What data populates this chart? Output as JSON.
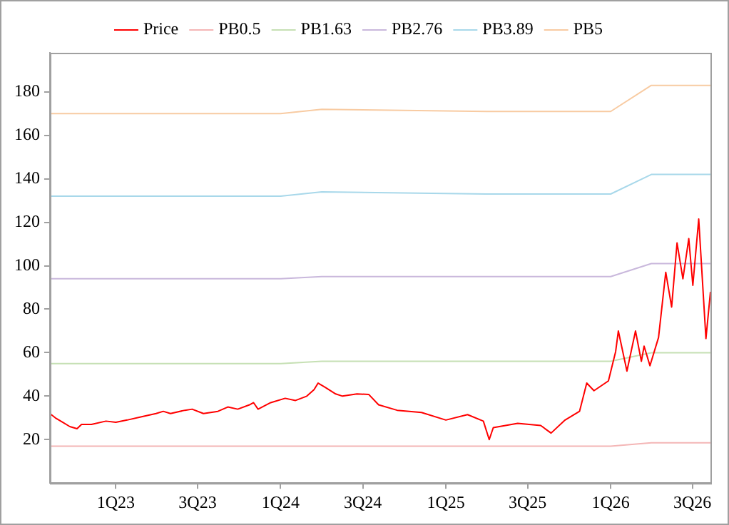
{
  "chart_data": {
    "type": "line",
    "legend": "top",
    "grid": false,
    "marker": "none",
    "line_style": "solid",
    "xlim": [
      "2022-08-08",
      "2026-08-10"
    ],
    "xticks": [
      {
        "value": "2023-01-01",
        "label": "1Q23"
      },
      {
        "value": "2023-07-01",
        "label": "3Q23"
      },
      {
        "value": "2024-01-01",
        "label": "1Q24"
      },
      {
        "value": "2024-07-01",
        "label": "3Q24"
      },
      {
        "value": "2025-01-01",
        "label": "1Q25"
      },
      {
        "value": "2025-07-01",
        "label": "3Q25"
      },
      {
        "value": "2026-01-01",
        "label": "1Q26"
      },
      {
        "value": "2026-07-01",
        "label": "3Q26"
      }
    ],
    "ylim": [
      0,
      198
    ],
    "yticks": [
      20,
      40,
      60,
      80,
      100,
      120,
      140,
      160,
      180
    ],
    "series": [
      {
        "name": "Price",
        "color": "#ff0000",
        "x": [
          "2022-08-08",
          "2022-08-20",
          "2022-09-05",
          "2022-09-21",
          "2022-10-07",
          "2022-10-17",
          "2022-11-08",
          "2022-12-10",
          "2023-01-01",
          "2023-01-26",
          "2023-02-27",
          "2023-03-31",
          "2023-04-16",
          "2023-05-02",
          "2023-06-03",
          "2023-06-19",
          "2023-07-14",
          "2023-08-15",
          "2023-09-06",
          "2023-09-28",
          "2023-10-24",
          "2023-11-02",
          "2023-11-12",
          "2023-12-10",
          "2024-01-11",
          "2024-02-03",
          "2024-02-28",
          "2024-03-15",
          "2024-03-24",
          "2024-04-09",
          "2024-05-02",
          "2024-05-17",
          "2024-06-18",
          "2024-07-14",
          "2024-08-05",
          "2024-09-15",
          "2024-11-08",
          "2025-01-01",
          "2025-02-18",
          "2025-03-25",
          "2025-04-07",
          "2025-04-16",
          "2025-06-09",
          "2025-07-30",
          "2025-08-22",
          "2025-09-22",
          "2025-10-24",
          "2025-11-09",
          "2025-11-25",
          "2025-12-27",
          "2026-01-12",
          "2026-01-18",
          "2026-02-06",
          "2026-02-25",
          "2026-03-10",
          "2026-03-16",
          "2026-03-29",
          "2026-04-17",
          "2026-05-03",
          "2026-05-16",
          "2026-05-28",
          "2026-06-10",
          "2026-06-23",
          "2026-07-02",
          "2026-07-15",
          "2026-07-31",
          "2026-08-10"
        ],
        "values": [
          32,
          30,
          28,
          26,
          25,
          27,
          27,
          28.5,
          28,
          29,
          30.5,
          32,
          33,
          32,
          33.5,
          34,
          32,
          33,
          35,
          34,
          36,
          37,
          34,
          37,
          39,
          38,
          40,
          43,
          46,
          44,
          41,
          40,
          41,
          40.8,
          36,
          33.5,
          32.5,
          29,
          31.5,
          28.5,
          20,
          25.5,
          27.5,
          26.5,
          23,
          29,
          33,
          46,
          42.5,
          47,
          60.5,
          70,
          51.5,
          70,
          56,
          63,
          54,
          67,
          97,
          81,
          110.5,
          94,
          112.5,
          91,
          121.5,
          66.5,
          88
        ]
      },
      {
        "name": "PB0.5",
        "color": "#f4b6b6",
        "x": [
          "2022-08-08",
          "2024-01-01",
          "2024-04-01",
          "2025-04-01",
          "2026-01-01",
          "2026-04-01",
          "2026-08-10"
        ],
        "values": [
          17,
          17,
          17,
          17,
          17,
          18.5,
          18.5
        ]
      },
      {
        "name": "PB1.63",
        "color": "#c6e0b4",
        "x": [
          "2022-08-08",
          "2024-01-01",
          "2024-04-01",
          "2025-04-01",
          "2026-01-01",
          "2026-04-01",
          "2026-08-10"
        ],
        "values": [
          55,
          55,
          56,
          56,
          56,
          60,
          60
        ]
      },
      {
        "name": "PB2.76",
        "color": "#c9b8dc",
        "x": [
          "2022-08-08",
          "2024-01-01",
          "2024-04-01",
          "2025-04-01",
          "2026-01-01",
          "2026-04-01",
          "2026-08-10"
        ],
        "values": [
          94,
          94,
          95,
          95,
          95,
          101,
          101
        ]
      },
      {
        "name": "PB3.89",
        "color": "#a8d8ea",
        "x": [
          "2022-08-08",
          "2024-01-01",
          "2024-04-01",
          "2025-04-01",
          "2026-01-01",
          "2026-04-01",
          "2026-08-10"
        ],
        "values": [
          132,
          132,
          134,
          133,
          133,
          142,
          142
        ]
      },
      {
        "name": "PB5",
        "color": "#f8cba2",
        "x": [
          "2022-08-08",
          "2024-01-01",
          "2024-04-01",
          "2025-04-01",
          "2026-01-01",
          "2026-04-01",
          "2026-08-10"
        ],
        "values": [
          170,
          170,
          172,
          171,
          171,
          183,
          183
        ]
      }
    ]
  }
}
